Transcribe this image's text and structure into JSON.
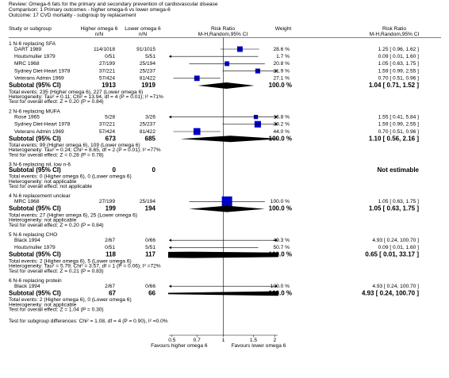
{
  "chart_data": {
    "type": "forest",
    "header": {
      "review": "Review:  Omega-6 fats for the primary and secondary prevention of cardiovascular disease",
      "comparison": "Comparison: 1 Primary outcomes - higher omega-6 vs lower omega-6",
      "outcome": "Outcome: 17 CVD mortality - subgroup by replacement"
    },
    "columns": {
      "study": "Study or subgroup",
      "higher": "Higher omega 6",
      "higher_sub": "n/N",
      "lower": "Lower omega 6",
      "lower_sub": "n/N",
      "plot": "Risk Ratio",
      "plot_sub": "M-H,Random,95% CI",
      "weight": "Weight",
      "rr": "Risk Ratio",
      "rr_sub": "M-H,Random,95% CI"
    },
    "groups": [
      {
        "title": "1 N-6 replacing SFA",
        "studies": [
          {
            "name": "DART 1989",
            "higher": "114/1018",
            "lower": "91/1015",
            "weight": 28.6,
            "weight_label": "28.6 %",
            "rr": [
              1.25,
              0.96,
              1.62
            ],
            "rr_label": "1.25 [ 0.96, 1.62 ]"
          },
          {
            "name": "Houtsmuller 1979",
            "higher": "0/51",
            "lower": "5/51",
            "weight": 1.7,
            "weight_label": "1.7 %",
            "rr": [
              0.09,
              0.01,
              1.6
            ],
            "rr_label": "0.09 [ 0.01, 1.60 ]"
          },
          {
            "name": "MRC 1968",
            "higher": "27/199",
            "lower": "25/194",
            "weight": 20.8,
            "weight_label": "20.8 %",
            "rr": [
              1.05,
              0.63,
              1.75
            ],
            "rr_label": "1.05 [ 0.63, 1.75 ]"
          },
          {
            "name": "Sydney Diet-Heart 1978",
            "higher": "37/221",
            "lower": "25/237",
            "weight": 21.9,
            "weight_label": "21.9 %",
            "rr": [
              1.59,
              0.99,
              2.55
            ],
            "rr_label": "1.59 [ 0.99, 2.55 ]"
          },
          {
            "name": "Veterans Admin 1969",
            "higher": "57/424",
            "lower": "81/422",
            "weight": 27.1,
            "weight_label": "27.1 %",
            "rr": [
              0.7,
              0.51,
              0.96
            ],
            "rr_label": "0.70 [ 0.51, 0.96 ]"
          }
        ],
        "subtotal": {
          "label": "Subtotal (95% CI)",
          "higher": 1913,
          "lower": 1919,
          "weight_label": "100.0 %",
          "rr": [
            1.04,
            0.71,
            1.52
          ],
          "rr_label": "1.04 [ 0.71, 1.52 ]"
        },
        "notes": [
          "Total events: 235 (Higher omega 6), 227 (Lower omega 6)",
          "Heterogeneity: Tau² = 0.11; Chi² = 13.94, df = 4 (P = 0.01); I² =71%",
          "Test for overall effect: Z = 0.20 (P = 0.84)"
        ]
      },
      {
        "title": "2 N-6 replacing MUFA",
        "studies": [
          {
            "name": "Rose 1965",
            "higher": "5/28",
            "lower": "3/26",
            "weight": 16.8,
            "weight_label": "16.8 %",
            "rr": [
              1.55,
              0.41,
              5.84
            ],
            "rr_label": "1.55 [ 0.41, 5.84 ]"
          },
          {
            "name": "Sydney Diet-Heart 1978",
            "higher": "37/221",
            "lower": "25/237",
            "weight": 39.2,
            "weight_label": "39.2 %",
            "rr": [
              1.59,
              0.99,
              2.55
            ],
            "rr_label": "1.59 [ 0.99, 2.55 ]"
          },
          {
            "name": "Veterans Admin 1969",
            "higher": "57/424",
            "lower": "81/422",
            "weight": 44.0,
            "weight_label": "44.0 %",
            "rr": [
              0.7,
              0.51,
              0.96
            ],
            "rr_label": "0.70 [ 0.51, 0.96 ]"
          }
        ],
        "subtotal": {
          "label": "Subtotal (95% CI)",
          "higher": 673,
          "lower": 685,
          "weight_label": "100.0 %",
          "rr": [
            1.1,
            0.56,
            2.16
          ],
          "rr_label": "1.10 [ 0.56, 2.16 ]"
        },
        "notes": [
          "Total events: 99 (Higher omega 6), 109 (Lower omega 6)",
          "Heterogeneity: Tau² = 0.24; Chi² = 8.65, df = 2 (P = 0.01); I² =77%",
          "Test for overall effect: Z = 0.28 (P = 0.78)"
        ]
      },
      {
        "title": "3 N-6 replacing nil, low n-6",
        "studies": [],
        "subtotal": {
          "label": "Subtotal (95% CI)",
          "higher": 0,
          "lower": 0,
          "rr_label": "Not estimable"
        },
        "notes": [
          "Total events: 0 (Higher omega 6), 0 (Lower omega 6)",
          "Heterogeneity: not applicable",
          "Test for overall effect: not applicable"
        ]
      },
      {
        "title": "4 N-6 replacement unclear",
        "studies": [
          {
            "name": "MRC 1968",
            "higher": "27/199",
            "lower": "25/194",
            "weight": 100.0,
            "weight_label": "100.0 %",
            "rr": [
              1.05,
              0.63,
              1.75
            ],
            "rr_label": "1.05 [ 0.63, 1.75 ]"
          }
        ],
        "subtotal": {
          "label": "Subtotal (95% CI)",
          "higher": 199,
          "lower": 194,
          "weight_label": "100.0 %",
          "rr": [
            1.05,
            0.63,
            1.75
          ],
          "rr_label": "1.05 [ 0.63, 1.75 ]"
        },
        "notes": [
          "Total events: 27 (Higher omega 6), 25 (Lower omega 6)",
          "Heterogeneity: not applicable",
          "Test for overall effect: Z = 0.20 (P = 0.84)"
        ]
      },
      {
        "title": "5 N-6 replacing CHO",
        "studies": [
          {
            "name": "Black 1994",
            "higher": "2/67",
            "lower": "0/66",
            "weight": 49.3,
            "weight_label": "49.3 %",
            "rr": [
              4.93,
              0.24,
              100.7
            ],
            "rr_label": "4.93 [ 0.24, 100.70 ]"
          },
          {
            "name": "Houtsmuller 1979",
            "higher": "0/51",
            "lower": "5/51",
            "weight": 50.7,
            "weight_label": "50.7 %",
            "rr": [
              0.09,
              0.01,
              1.6
            ],
            "rr_label": "0.09 [ 0.01, 1.60 ]"
          }
        ],
        "subtotal": {
          "label": "Subtotal (95% CI)",
          "higher": 118,
          "lower": 117,
          "weight_label": "100.0 %",
          "rr": [
            0.65,
            0.01,
            33.17
          ],
          "rr_label": "0.65 [ 0.01, 33.17 ]"
        },
        "notes": [
          "Total events: 2 (Higher omega 6), 5 (Lower omega 6)",
          "Heterogeneity: Tau² = 5.79; Chi² = 3.57, df = 1 (P = 0.06); I² =72%",
          "Test for overall effect: Z = 0.21 (P = 0.83)"
        ]
      },
      {
        "title": "6 N-6 replacing protein",
        "studies": [
          {
            "name": "Black 1994",
            "higher": "2/67",
            "lower": "0/66",
            "weight": 100.0,
            "weight_label": "100.0 %",
            "rr": [
              4.93,
              0.24,
              100.7
            ],
            "rr_label": "4.93 [ 0.24, 100.70 ]"
          }
        ],
        "subtotal": {
          "label": "Subtotal (95% CI)",
          "higher": 67,
          "lower": 66,
          "weight_label": "100.0 %",
          "rr": [
            4.93,
            0.24,
            100.7
          ],
          "rr_label": "4.93 [ 0.24, 100.70 ]"
        },
        "notes": [
          "Total events: 2 (Higher omega 6), 0 (Lower omega 6)",
          "Heterogeneity: not applicable",
          "Test for overall effect: Z = 1.04 (P = 0.30)"
        ]
      }
    ],
    "subgroup_test": "Test for subgroup differences: Chi² = 1.08, df = 4 (P = 0.90), I² =0.0%",
    "xscale": "log",
    "xlim": [
      0.48,
      2.08
    ],
    "xticks": [
      0.5,
      0.7,
      1,
      1.5,
      2
    ],
    "favours_left": "Favours higher omega 6",
    "favours_right": "Favours lower omega 6",
    "color": "#0000cc"
  }
}
